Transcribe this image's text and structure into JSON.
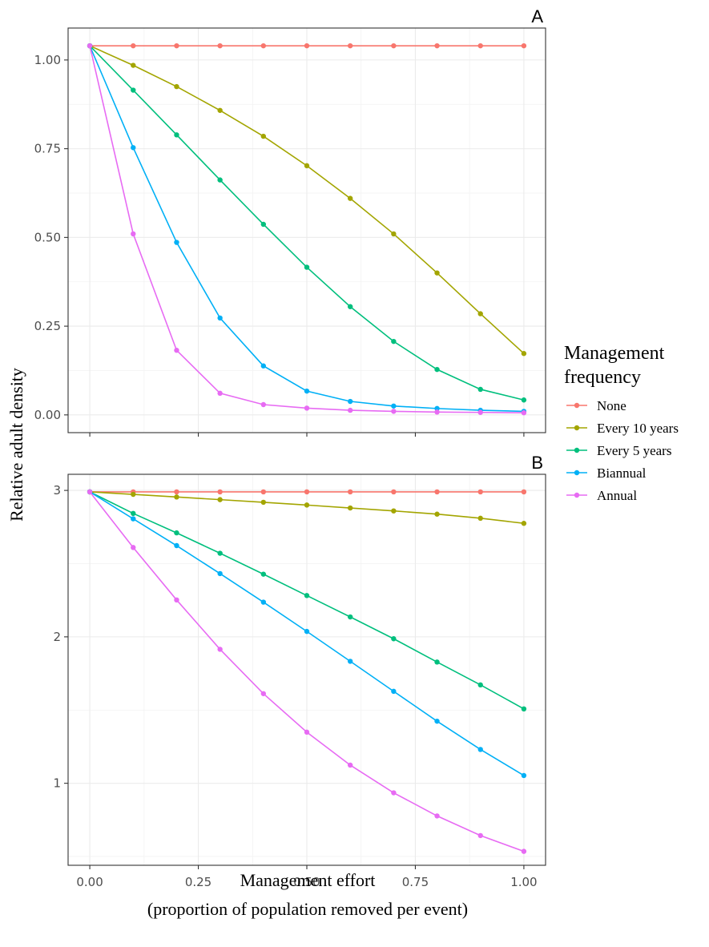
{
  "chart_data": {
    "type": "line",
    "xlabel_line1": "Management effort",
    "xlabel_line2": "(proportion of population removed per event)",
    "ylabel": "Relative adult density",
    "x": [
      0,
      0.1,
      0.2,
      0.3,
      0.4,
      0.5,
      0.6,
      0.7,
      0.8,
      0.9,
      1.0
    ],
    "x_ticks": [
      0,
      0.25,
      0.5,
      0.75,
      1.0
    ],
    "x_tick_labels": [
      "0.00",
      "0.25",
      "0.50",
      "0.75",
      "1.00"
    ],
    "xlim": [
      -0.05,
      1.05
    ],
    "grid": true,
    "legend": {
      "title_line1": "Management",
      "title_line2": "frequency",
      "placement": "right",
      "entries": [
        {
          "name": "None",
          "color": "#F8766D"
        },
        {
          "name": "Every 10 years",
          "color": "#A3A500"
        },
        {
          "name": "Every 5 years",
          "color": "#00BF7D"
        },
        {
          "name": "Biannual",
          "color": "#00B0F6"
        },
        {
          "name": "Annual",
          "color": "#E76BF3"
        }
      ]
    },
    "panels": [
      {
        "tag": "A",
        "ylim": [
          -0.05,
          1.09
        ],
        "y_ticks": [
          0,
          0.25,
          0.5,
          0.75,
          1.0
        ],
        "y_tick_labels": [
          "0.00",
          "0.25",
          "0.50",
          "0.75",
          "1.00"
        ],
        "series": [
          {
            "values": [
              1.04,
              1.04,
              1.04,
              1.04,
              1.04,
              1.04,
              1.04,
              1.04,
              1.04,
              1.04,
              1.04
            ]
          },
          {
            "values": [
              1.04,
              0.985,
              0.925,
              0.858,
              0.785,
              0.702,
              0.61,
              0.51,
              0.4,
              0.285,
              0.173
            ]
          },
          {
            "values": [
              1.04,
              0.915,
              0.789,
              0.662,
              0.537,
              0.416,
              0.305,
              0.207,
              0.128,
              0.072,
              0.042
            ]
          },
          {
            "values": [
              1.04,
              0.753,
              0.486,
              0.273,
              0.138,
              0.067,
              0.038,
              0.025,
              0.018,
              0.013,
              0.01
            ]
          },
          {
            "values": [
              1.04,
              0.51,
              0.182,
              0.061,
              0.029,
              0.019,
              0.013,
              0.01,
              0.008,
              0.007,
              0.006
            ]
          }
        ]
      },
      {
        "tag": "B",
        "ylim": [
          0.44,
          3.11
        ],
        "y_ticks": [
          1,
          2,
          3
        ],
        "y_tick_labels": [
          "1",
          "2",
          "3"
        ],
        "series": [
          {
            "values": [
              2.99,
              2.99,
              2.99,
              2.99,
              2.99,
              2.99,
              2.99,
              2.99,
              2.99,
              2.99,
              2.99
            ]
          },
          {
            "values": [
              2.99,
              2.973,
              2.955,
              2.937,
              2.919,
              2.9,
              2.88,
              2.86,
              2.838,
              2.81,
              2.775
            ]
          },
          {
            "values": [
              2.99,
              2.843,
              2.71,
              2.571,
              2.428,
              2.282,
              2.136,
              1.987,
              1.828,
              1.672,
              1.508
            ]
          },
          {
            "values": [
              2.99,
              2.806,
              2.623,
              2.432,
              2.237,
              2.037,
              1.833,
              1.628,
              1.424,
              1.231,
              1.053
            ]
          },
          {
            "values": [
              2.99,
              2.61,
              2.252,
              1.915,
              1.612,
              1.349,
              1.124,
              0.935,
              0.777,
              0.643,
              0.535
            ]
          }
        ]
      }
    ]
  }
}
